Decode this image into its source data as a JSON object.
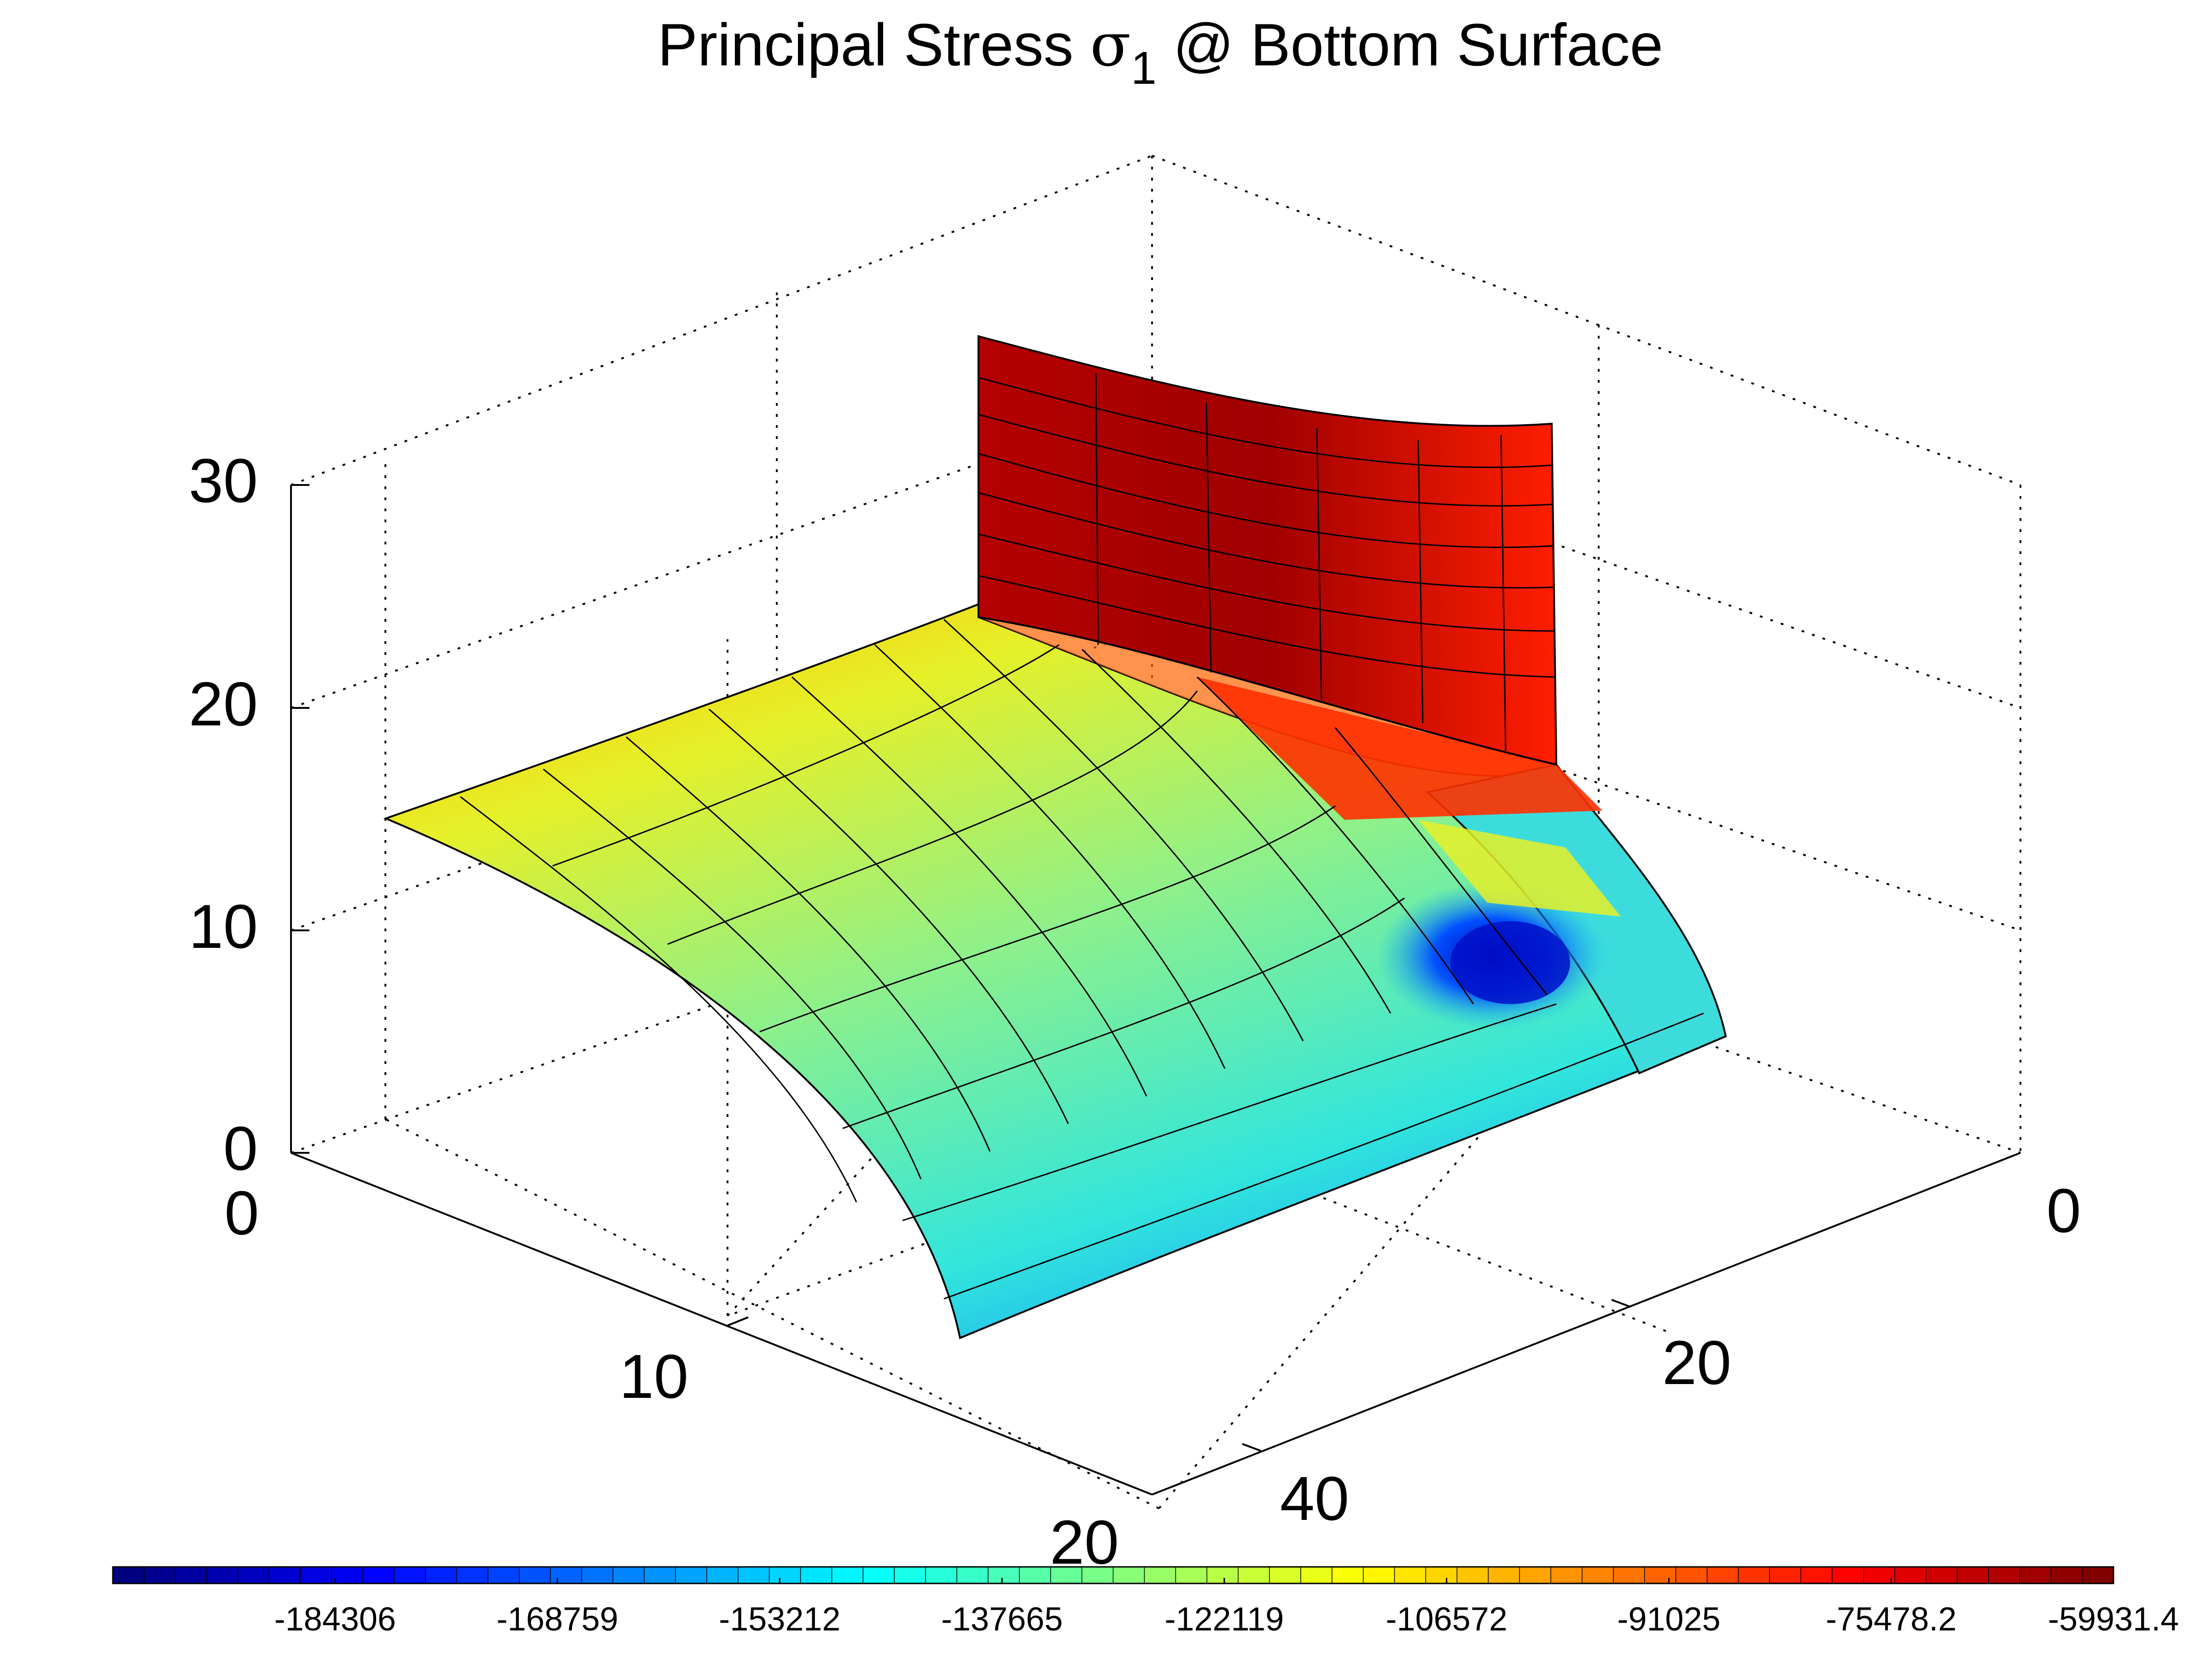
{
  "chart_data": {
    "type": "surface3d",
    "title": {
      "prefix": "Principal Stress ",
      "symbol": "σ",
      "subscript": "1",
      "suffix": " @ Bottom Surface"
    },
    "axes": {
      "x": {
        "ticks": [
          "0",
          "10",
          "20"
        ],
        "range": [
          0,
          20
        ]
      },
      "y": {
        "ticks": [
          "0",
          "20",
          "40"
        ],
        "range": [
          0,
          40
        ]
      },
      "z": {
        "ticks": [
          "0",
          "10",
          "20",
          "30"
        ],
        "range": [
          0,
          30
        ]
      }
    },
    "grid": true,
    "colorbar": {
      "position": "bottom",
      "min": -199853,
      "max": -59931.4,
      "tick_labels": [
        "-184306",
        "-168759",
        "-153212",
        "-137665",
        "-122119",
        "-106572",
        "-91025",
        "-75478.2",
        "-59931.4"
      ],
      "colormap": "jet"
    },
    "surface_description_colors": {
      "wall": "#c80000",
      "plate_far": "#b4dc3c",
      "plate_near": "#3cdcdc",
      "hotspot": "#0000e0"
    }
  }
}
